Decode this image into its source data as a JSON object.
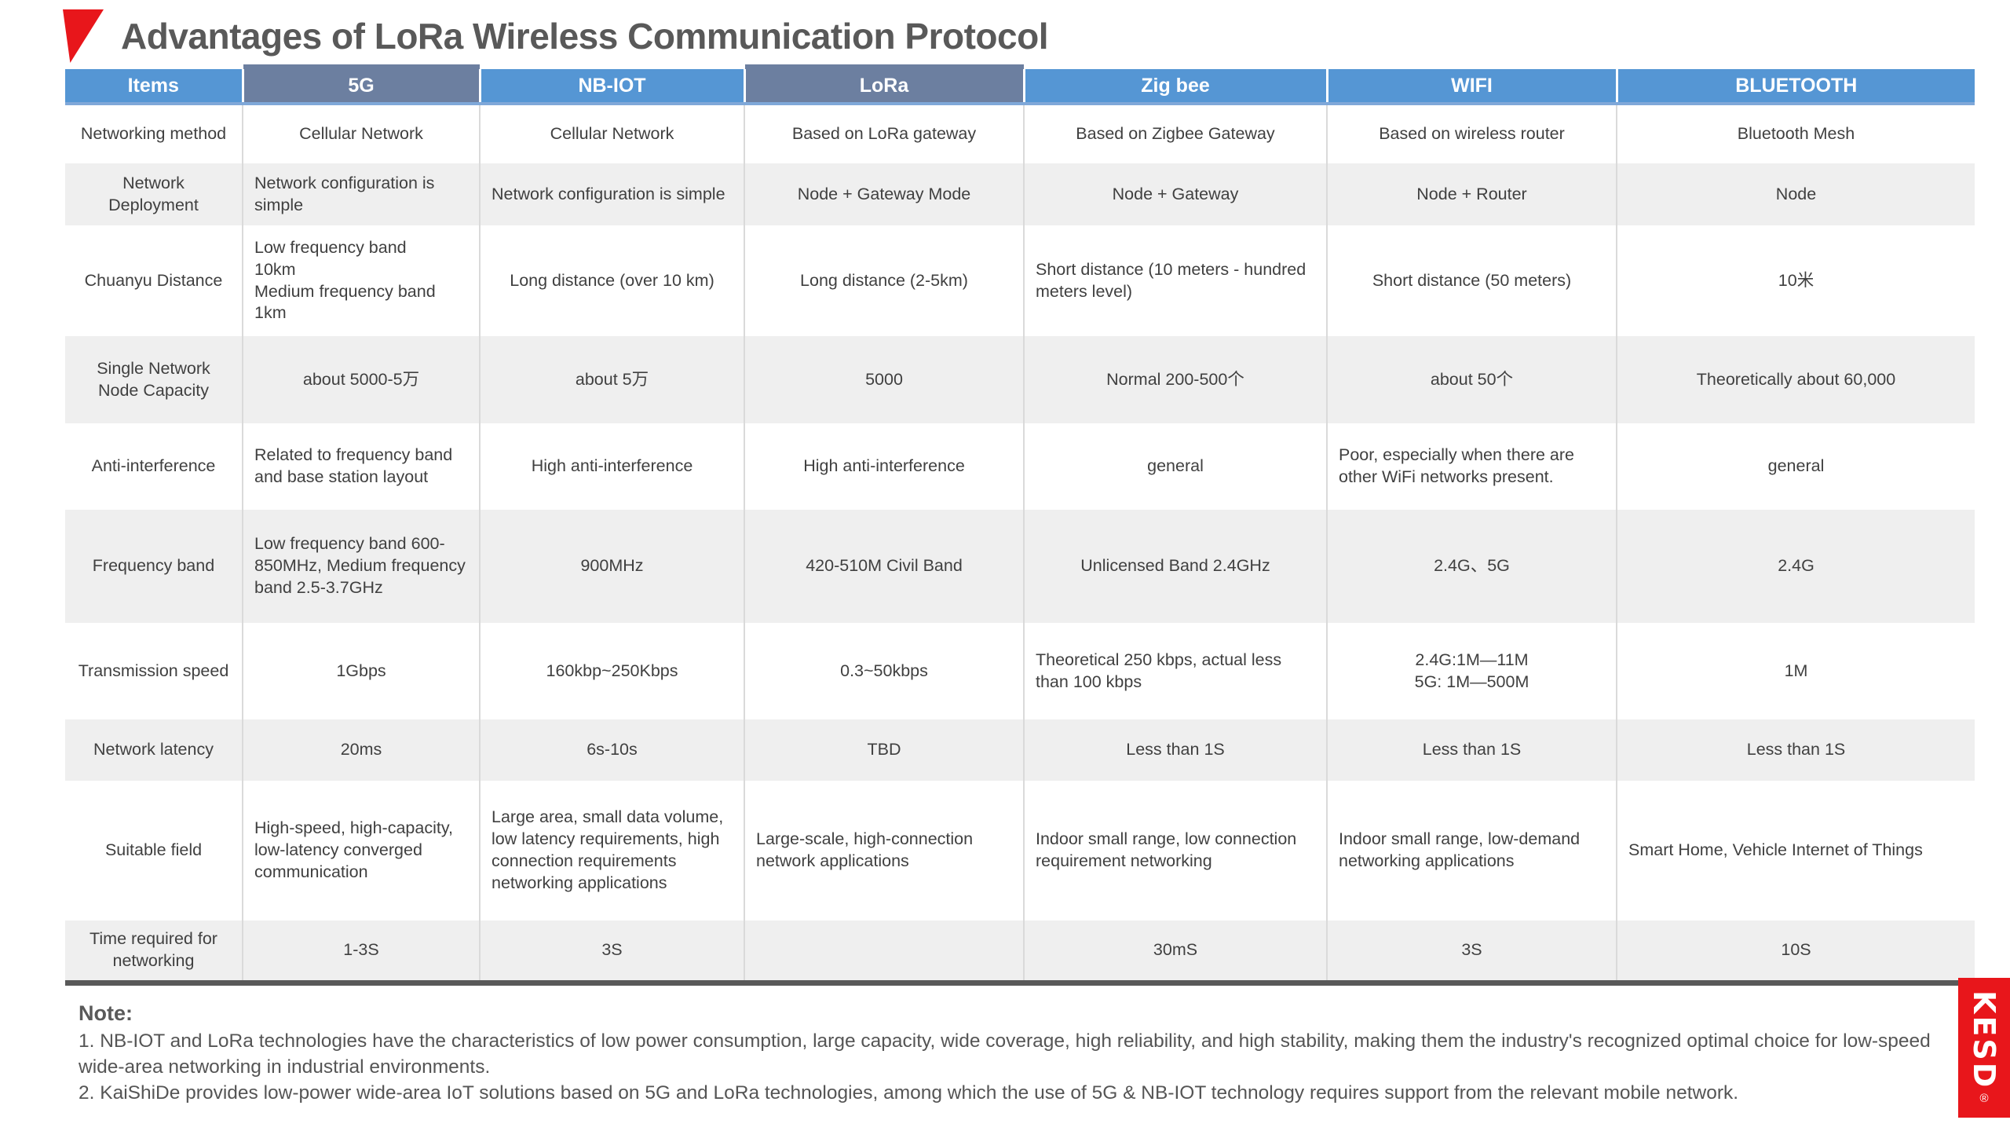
{
  "page": {
    "title": "Advantages of LoRa Wireless Communication Protocol"
  },
  "table": {
    "columns": [
      "Items",
      "5G",
      "NB-IOT",
      "LoRa",
      "Zig bee",
      "WIFI",
      "BLUETOOTH"
    ],
    "highlight_columns": [
      "5G",
      "LoRa"
    ],
    "rows": [
      {
        "label": "Networking method",
        "values": [
          "Cellular Network",
          "Cellular Network",
          "Based on LoRa gateway",
          "Based on Zigbee Gateway",
          "Based on wireless router",
          "Bluetooth Mesh"
        ]
      },
      {
        "label": "Network Deployment",
        "values": [
          "Network configuration is simple",
          "Network configuration is simple",
          "Node + Gateway Mode",
          "Node + Gateway",
          "Node + Router",
          "Node"
        ]
      },
      {
        "label": "Chuanyu Distance",
        "values": [
          "Low frequency band\n10km\nMedium frequency band\n1km",
          "Long distance (over 10 km)",
          "Long distance (2-5km)",
          "Short distance (10 meters - hundred meters level)",
          "Short distance (50 meters)",
          "10米"
        ]
      },
      {
        "label": "Single Network Node Capacity",
        "values": [
          "about 5000-5万",
          "about 5万",
          "5000",
          "Normal 200-500个",
          "about 50个",
          "Theoretically about 60,000"
        ]
      },
      {
        "label": "Anti-interference",
        "values": [
          "Related to frequency band and base station layout",
          "High anti-interference",
          "High anti-interference",
          "general",
          "Poor, especially when there are other WiFi networks present.",
          "general"
        ]
      },
      {
        "label": "Frequency band",
        "values": [
          "Low frequency band 600-850MHz, Medium frequency band 2.5-3.7GHz",
          "900MHz",
          "420-510M Civil Band",
          "Unlicensed Band 2.4GHz",
          "2.4G、5G",
          "2.4G"
        ]
      },
      {
        "label": "Transmission speed",
        "values": [
          "1Gbps",
          "160kbp~250Kbps",
          "0.3~50kbps",
          "Theoretical 250 kbps, actual less than 100 kbps",
          "2.4G:1M—11M\n5G: 1M—500M",
          "1M"
        ]
      },
      {
        "label": "Network latency",
        "values": [
          "20ms",
          "6s-10s",
          "TBD",
          "Less than 1S",
          "Less than 1S",
          "Less than 1S"
        ]
      },
      {
        "label": "Suitable field",
        "values": [
          "High-speed, high-capacity, low-latency converged communication",
          "Large area, small data volume, low latency requirements, high connection requirements networking applications",
          "Large-scale, high-connection network applications",
          "Indoor small range, low connection requirement networking",
          "Indoor small range, low-demand networking applications",
          "Smart Home, Vehicle Internet of Things"
        ]
      },
      {
        "label": "Time required for networking",
        "values": [
          "1-3S",
          "3S",
          "",
          "30mS",
          "3S",
          "10S"
        ]
      }
    ]
  },
  "note": {
    "heading": "Note:",
    "items": [
      "1. NB-IOT and LoRa technologies have the characteristics of low power consumption, large capacity, wide coverage, high reliability, and high stability, making them the industry's recognized optimal choice for low-speed wide-area networking in industrial environments.",
      "2. KaiShiDe provides low-power wide-area IoT solutions based on 5G and LoRa technologies, among which the use of 5G & NB-IOT technology requires support from the relevant mobile network."
    ]
  },
  "logo": {
    "text": "KESD",
    "registered": "®"
  },
  "colors": {
    "header_blue": "#5596D4",
    "header_highlight": "#6C7FA0",
    "row_stripe": "#EFEFEF",
    "accent_red": "#E8161B",
    "title_text": "#595959",
    "cell_text": "#404040",
    "under_header_line": "#7FA8D9"
  }
}
